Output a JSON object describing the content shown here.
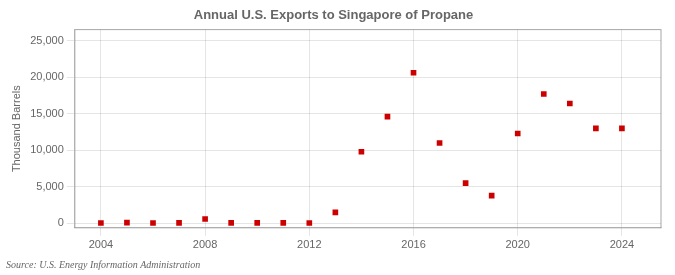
{
  "chart_data": {
    "type": "scatter",
    "title": "Annual U.S. Exports to Singapore of Propane",
    "ylabel": "Thousand Barrels",
    "annotation": "Source: U.S. Energy Information Administration",
    "x": [
      2004,
      2005,
      2006,
      2007,
      2008,
      2009,
      2010,
      2011,
      2012,
      2013,
      2014,
      2015,
      2016,
      2017,
      2018,
      2019,
      2020,
      2021,
      2022,
      2023,
      2024
    ],
    "values": [
      50,
      100,
      50,
      80,
      600,
      80,
      80,
      80,
      50,
      1500,
      9800,
      14600,
      20600,
      11000,
      5500,
      3800,
      12300,
      17700,
      16400,
      13000,
      13000
    ],
    "color": "#cc0000",
    "marker": "square",
    "xlim": [
      2003.0,
      2025.5
    ],
    "ylim": [
      -600,
      26500
    ],
    "xticks": [
      2004,
      2008,
      2012,
      2016,
      2020,
      2024
    ],
    "yticks": [
      0,
      {
        "value": 5000,
        "label": "5,000"
      },
      {
        "value": 10000,
        "label": "10,000"
      },
      {
        "value": 15000,
        "label": "15,000"
      },
      {
        "value": 20000,
        "label": "20,000"
      },
      {
        "value": 25000,
        "label": "25,000"
      }
    ],
    "grid": true
  }
}
